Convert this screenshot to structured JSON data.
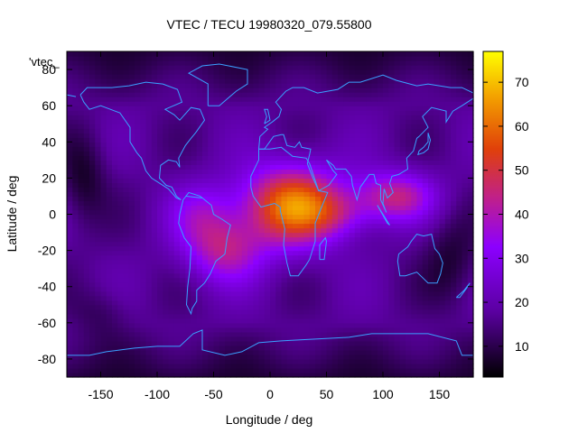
{
  "chart_data": {
    "type": "heatmap",
    "title": "VTEC / TECU 19980320_079.55800",
    "xlabel": "Longitude / deg",
    "ylabel": "Latitude / deg",
    "xlim": [
      -180,
      180
    ],
    "ylim": [
      -90,
      90
    ],
    "xticks": [
      -150,
      -100,
      -50,
      0,
      50,
      100,
      150
    ],
    "yticks": [
      -80,
      -60,
      -40,
      -20,
      0,
      20,
      40,
      60,
      80
    ],
    "colorbar": {
      "range": [
        3,
        77
      ],
      "ticks": [
        10,
        20,
        30,
        40,
        50,
        60,
        70
      ]
    },
    "key_label": "'vtec_",
    "colors": {
      "coastline": "#3aa0ff"
    },
    "field": {
      "peak": {
        "lon": 20,
        "lat": 5,
        "value": 62
      },
      "east_lobe": {
        "lon": 110,
        "lat": 10,
        "value": 46
      },
      "south_lobe": {
        "lon": -40,
        "lat": -20,
        "value": 42
      },
      "background": 17,
      "polar_min": 4
    }
  }
}
